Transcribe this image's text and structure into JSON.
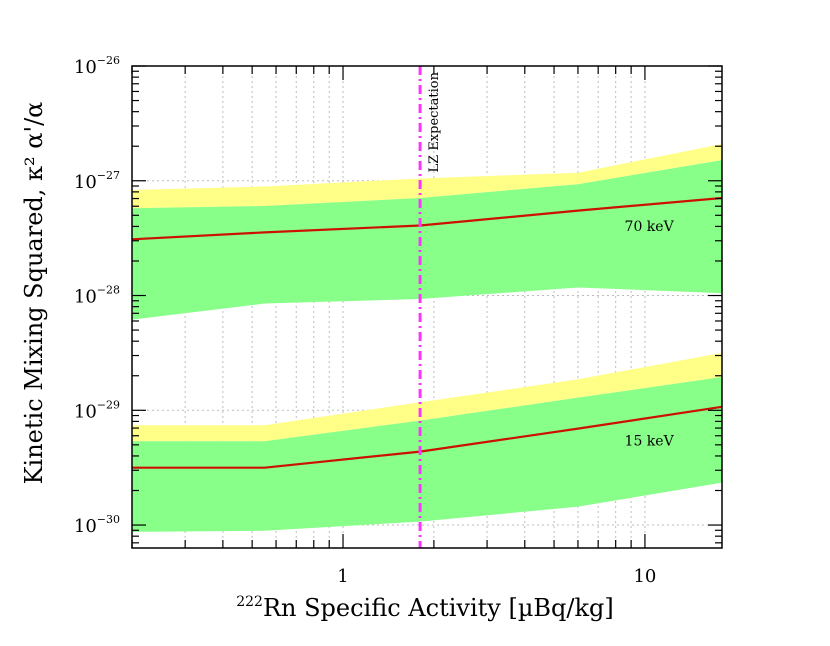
{
  "chart_data": {
    "type": "line",
    "log_x": true,
    "log_y": true,
    "xlim": [
      0.2,
      18
    ],
    "ylim_exp": [
      -30.2,
      -26
    ],
    "xlabel": {
      "sup": "222",
      "text": "Rn Specific Activity [µBq/kg]"
    },
    "ylabel": "Kinetic Mixing Squared,  κ²  α'/α",
    "x_ticks": [
      {
        "value": 1,
        "label": "1"
      },
      {
        "value": 10,
        "label": "10"
      }
    ],
    "y_ticks": [
      {
        "exp": -26,
        "base": "10",
        "sup": "−26"
      },
      {
        "exp": -27,
        "base": "10",
        "sup": "−27"
      },
      {
        "exp": -28,
        "base": "10",
        "sup": "−28"
      },
      {
        "exp": -29,
        "base": "10",
        "sup": "−29"
      },
      {
        "exp": -30,
        "base": "10",
        "sup": "−30"
      }
    ],
    "vertical_line": {
      "x": 1.8,
      "label": "LZ Expectation",
      "color": "#ff33ff"
    },
    "band_colors": {
      "two_sigma": "#ffff88",
      "one_sigma": "#88ff88",
      "median": "#cc1100"
    },
    "series": [
      {
        "name": "70 keV",
        "label": "70 keV",
        "label_x": 9.0,
        "x": [
          0.2,
          0.55,
          1.8,
          6.0,
          18
        ],
        "median_exp": [
          -27.51,
          -27.45,
          -27.39,
          -27.26,
          -27.15
        ],
        "one_sigma_low_exp": [
          -28.21,
          -28.07,
          -28.03,
          -27.93,
          -27.98
        ],
        "one_sigma_high_exp": [
          -27.24,
          -27.22,
          -27.15,
          -27.03,
          -26.82
        ],
        "two_sigma_high_exp": [
          -27.08,
          -27.05,
          -26.98,
          -26.93,
          -26.68
        ]
      },
      {
        "name": "15 keV",
        "label": "15 keV",
        "label_x": 9.0,
        "x": [
          0.2,
          0.55,
          1.8,
          6.0,
          18
        ],
        "median_exp": [
          -29.5,
          -29.5,
          -29.36,
          -29.16,
          -28.97
        ],
        "one_sigma_low_exp": [
          -30.06,
          -30.05,
          -29.97,
          -29.84,
          -29.63
        ],
        "one_sigma_high_exp": [
          -29.27,
          -29.27,
          -29.09,
          -28.89,
          -28.71
        ],
        "two_sigma_high_exp": [
          -29.13,
          -29.13,
          -28.93,
          -28.73,
          -28.5
        ]
      }
    ]
  }
}
